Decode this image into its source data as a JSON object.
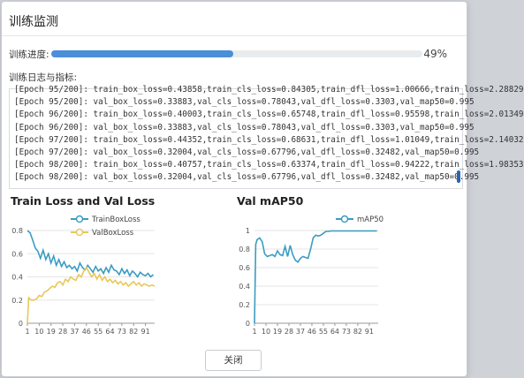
{
  "dialog": {
    "title": "训练监测",
    "progress_label": "训练进度:",
    "progress_value": 0.49,
    "progress_text": "49%",
    "log_label": "训练日志与指标:",
    "log_lines": [
      "[Epoch 95/200]: train_box_loss=0.43858,train_cls_loss=0.84305,train_dfl_loss=1.00666,train_loss=2.28829",
      "[Epoch 95/200]: val_box_loss=0.33883,val_cls_loss=0.78043,val_dfl_loss=0.3303,val_map50=0.995",
      "[Epoch 96/200]: train_box_loss=0.40003,train_cls_loss=0.65748,train_dfl_loss=0.95598,train_loss=2.01349",
      "[Epoch 96/200]: val_box_loss=0.33883,val_cls_loss=0.78043,val_dfl_loss=0.3303,val_map50=0.995",
      "[Epoch 97/200]: train_box_loss=0.44352,train_cls_loss=0.68631,train_dfl_loss=1.01049,train_loss=2.14032",
      "[Epoch 97/200]: val_box_loss=0.32004,val_cls_loss=0.67796,val_dfl_loss=0.32482,val_map50=0.995",
      "[Epoch 98/200]: train_box_loss=0.40757,train_cls_loss=0.63374,train_dfl_loss=0.94222,train_loss=1.98353",
      "[Epoch 98/200]: val_box_loss=0.32004,val_cls_loss=0.67796,val_dfl_loss=0.32482,val_map50=0.995"
    ],
    "close_label": "关闭"
  },
  "chart_data": [
    {
      "type": "line",
      "title": "Train Loss and Val Loss",
      "xlabel": "",
      "ylabel": "",
      "xlim": [
        1,
        98
      ],
      "ylim": [
        0,
        0.8
      ],
      "yticks": [
        "0",
        "0.2",
        "0.4",
        "0.6",
        "0.8"
      ],
      "xticks": [
        "1",
        "10",
        "19",
        "28",
        "37",
        "46",
        "55",
        "64",
        "73",
        "82",
        "91"
      ],
      "legend": "top-center",
      "grid": true,
      "series": [
        {
          "name": "TrainBoxLoss",
          "color": "#3b9cc2",
          "x": [
            1,
            3,
            5,
            7,
            9,
            11,
            13,
            15,
            17,
            19,
            21,
            23,
            25,
            27,
            29,
            31,
            33,
            35,
            37,
            39,
            41,
            43,
            45,
            47,
            49,
            51,
            53,
            55,
            57,
            59,
            61,
            63,
            65,
            67,
            69,
            71,
            73,
            75,
            77,
            79,
            81,
            83,
            85,
            87,
            89,
            91,
            93,
            95,
            97
          ],
          "y": [
            0.8,
            0.78,
            0.72,
            0.65,
            0.62,
            0.56,
            0.63,
            0.55,
            0.6,
            0.52,
            0.58,
            0.5,
            0.55,
            0.49,
            0.53,
            0.48,
            0.5,
            0.47,
            0.49,
            0.45,
            0.52,
            0.48,
            0.46,
            0.5,
            0.47,
            0.44,
            0.49,
            0.45,
            0.47,
            0.43,
            0.48,
            0.44,
            0.5,
            0.46,
            0.45,
            0.42,
            0.47,
            0.43,
            0.46,
            0.41,
            0.45,
            0.43,
            0.4,
            0.44,
            0.42,
            0.41,
            0.43,
            0.4,
            0.42
          ]
        },
        {
          "name": "ValBoxLoss",
          "color": "#e8c85a",
          "x": [
            1,
            2,
            4,
            6,
            8,
            10,
            12,
            14,
            16,
            18,
            20,
            22,
            24,
            26,
            28,
            30,
            32,
            34,
            36,
            38,
            40,
            42,
            44,
            46,
            48,
            50,
            52,
            54,
            56,
            58,
            60,
            62,
            64,
            66,
            68,
            70,
            72,
            74,
            76,
            78,
            80,
            82,
            84,
            86,
            88,
            90,
            92,
            94,
            96,
            98
          ],
          "y": [
            0.0,
            0.22,
            0.2,
            0.2,
            0.21,
            0.24,
            0.23,
            0.27,
            0.28,
            0.3,
            0.32,
            0.31,
            0.35,
            0.36,
            0.33,
            0.38,
            0.36,
            0.4,
            0.38,
            0.37,
            0.42,
            0.4,
            0.45,
            0.48,
            0.44,
            0.4,
            0.43,
            0.38,
            0.42,
            0.37,
            0.4,
            0.36,
            0.38,
            0.35,
            0.37,
            0.34,
            0.36,
            0.33,
            0.35,
            0.32,
            0.34,
            0.36,
            0.33,
            0.35,
            0.32,
            0.34,
            0.33,
            0.32,
            0.33,
            0.32
          ]
        }
      ]
    },
    {
      "type": "line",
      "title": "Val mAP50",
      "xlabel": "",
      "ylabel": "",
      "xlim": [
        1,
        98
      ],
      "ylim": [
        0,
        1
      ],
      "yticks": [
        "0",
        "0.2",
        "0.4",
        "0.6",
        "0.8",
        "1"
      ],
      "xticks": [
        "1",
        "10",
        "19",
        "28",
        "37",
        "46",
        "55",
        "64",
        "73",
        "82",
        "91"
      ],
      "legend": "top-center",
      "grid": true,
      "series": [
        {
          "name": "mAP50",
          "color": "#3b9cc2",
          "x": [
            1,
            2,
            3,
            5,
            7,
            9,
            11,
            13,
            15,
            17,
            19,
            21,
            23,
            25,
            27,
            29,
            31,
            33,
            35,
            37,
            39,
            41,
            43,
            45,
            47,
            49,
            51,
            53,
            55,
            57,
            59,
            61,
            63,
            65,
            67,
            69,
            71,
            73,
            75,
            77,
            79,
            81,
            83,
            85,
            87,
            89,
            91,
            93,
            95,
            97
          ],
          "y": [
            0.0,
            0.85,
            0.9,
            0.92,
            0.88,
            0.75,
            0.72,
            0.73,
            0.74,
            0.72,
            0.78,
            0.74,
            0.73,
            0.83,
            0.72,
            0.84,
            0.74,
            0.68,
            0.66,
            0.7,
            0.72,
            0.71,
            0.7,
            0.8,
            0.92,
            0.95,
            0.94,
            0.95,
            0.97,
            0.99,
            0.99,
            0.995,
            0.995,
            0.995,
            0.995,
            0.995,
            0.995,
            0.995,
            0.995,
            0.995,
            0.995,
            0.995,
            0.995,
            0.995,
            0.995,
            0.995,
            0.995,
            0.995,
            0.995,
            0.995
          ]
        }
      ]
    }
  ]
}
